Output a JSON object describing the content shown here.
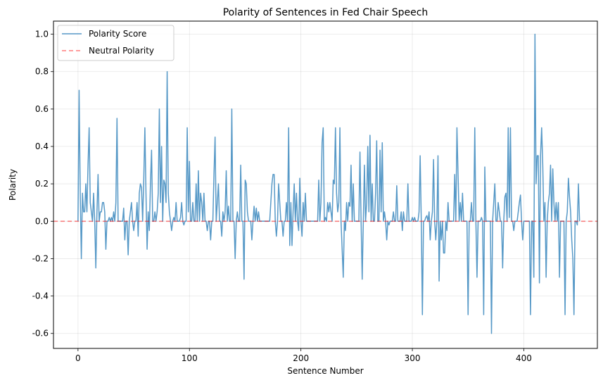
{
  "chart_data": {
    "type": "line",
    "title": "Polarity of Sentences in Fed Chair Speech",
    "xlabel": "Sentence Number",
    "ylabel": "Polarity",
    "xlim": [
      -22,
      466
    ],
    "ylim": [
      -0.68,
      1.07
    ],
    "xticks": [
      0,
      100,
      200,
      300,
      400
    ],
    "yticks": [
      -0.6,
      -0.4,
      -0.2,
      0.0,
      0.2,
      0.4,
      0.6,
      0.8,
      1.0
    ],
    "grid": true,
    "legend_position": "upper-left",
    "series": [
      {
        "name": "Polarity Score",
        "color": "#1f77b4",
        "x_start": 0,
        "values": [
          0.0,
          0.7,
          0.15,
          -0.2,
          0.15,
          0.05,
          0.05,
          0.2,
          0.05,
          0.3,
          0.5,
          0.1,
          0.05,
          0.0,
          0.15,
          0.0,
          -0.25,
          0.05,
          0.25,
          0.0,
          0.05,
          0.05,
          0.1,
          0.1,
          0.05,
          -0.15,
          0.0,
          0.0,
          0.02,
          0.0,
          0.02,
          0.0,
          0.05,
          0.0,
          0.1,
          0.55,
          0.0,
          0.0,
          0.0,
          0.0,
          0.0,
          0.07,
          -0.1,
          0.0,
          0.0,
          -0.18,
          0.0,
          0.05,
          0.1,
          0.0,
          -0.05,
          0.0,
          0.0,
          0.1,
          -0.08,
          0.15,
          0.2,
          0.18,
          0.0,
          0.22,
          0.5,
          0.15,
          -0.15,
          0.05,
          -0.05,
          0.2,
          0.38,
          0.0,
          0.0,
          0.05,
          0.0,
          0.05,
          0.15,
          0.6,
          0.1,
          0.4,
          0.0,
          0.22,
          0.2,
          0.1,
          0.8,
          0.15,
          0.05,
          0.0,
          -0.05,
          0.0,
          0.02,
          0.0,
          0.1,
          0.0,
          0.0,
          0.0,
          0.02,
          0.1,
          0.0,
          -0.02,
          0.0,
          0.0,
          0.5,
          0.05,
          0.32,
          0.0,
          0.0,
          0.1,
          0.0,
          0.0,
          0.2,
          0.0,
          0.27,
          0.0,
          0.15,
          0.1,
          0.0,
          0.15,
          0.0,
          0.0,
          -0.05,
          0.0,
          0.0,
          -0.1,
          0.0,
          0.0,
          0.25,
          0.45,
          0.0,
          0.1,
          0.2,
          0.0,
          0.0,
          -0.08,
          0.05,
          0.0,
          0.05,
          0.27,
          0.0,
          0.08,
          0.0,
          0.0,
          0.6,
          0.0,
          0.0,
          -0.2,
          0.0,
          0.05,
          0.0,
          0.0,
          0.3,
          0.0,
          0.0,
          -0.31,
          0.22,
          0.2,
          0.05,
          0.0,
          0.0,
          0.0,
          -0.1,
          0.0,
          0.08,
          0.0,
          0.07,
          0.0,
          0.05,
          0.0,
          0.0,
          0.0,
          0.0,
          0.0,
          0.0,
          0.0,
          0.0,
          0.0,
          0.0,
          0.1,
          0.2,
          0.25,
          0.25,
          0.0,
          -0.08,
          0.0,
          0.2,
          0.1,
          0.0,
          0.0,
          -0.08,
          0.0,
          0.0,
          0.1,
          0.0,
          0.5,
          -0.13,
          0.1,
          -0.13,
          0.05,
          0.2,
          0.0,
          0.15,
          0.0,
          -0.05,
          0.23,
          0.0,
          -0.08,
          0.1,
          0.0,
          0.15,
          0.0,
          0.0,
          0.0,
          0.0,
          0.0,
          0.0,
          0.0,
          0.0,
          0.0,
          0.0,
          0.0,
          0.22,
          0.0,
          0.1,
          0.42,
          0.5,
          0.0,
          0.02,
          0.0,
          0.1,
          0.05,
          0.1,
          0.05,
          0.0,
          0.22,
          0.2,
          0.5,
          0.15,
          0.05,
          0.1,
          0.5,
          0.0,
          -0.15,
          -0.3,
          0.0,
          -0.05,
          0.1,
          0.0,
          0.1,
          0.08,
          0.3,
          0.0,
          0.2,
          0.0,
          0.0,
          0.0,
          0.0,
          0.0,
          0.37,
          0.0,
          -0.31,
          0.0,
          0.3,
          0.0,
          0.1,
          0.4,
          0.05,
          0.46,
          0.0,
          0.2,
          0.0,
          0.0,
          0.15,
          0.43,
          0.0,
          0.0,
          0.38,
          0.05,
          0.42,
          0.0,
          0.05,
          0.0,
          -0.1,
          0.0,
          -0.02,
          0.0,
          0.0,
          0.0,
          0.05,
          0.0,
          0.0,
          0.19,
          0.0,
          0.0,
          0.0,
          0.05,
          -0.05,
          0.05,
          0.0,
          0.0,
          0.0,
          0.2,
          0.0,
          0.0,
          0.0,
          0.02,
          0.0,
          0.02,
          0.0,
          0.0,
          0.0,
          0.05,
          0.35,
          0.0,
          -0.5,
          0.0,
          0.0,
          0.02,
          0.03,
          0.0,
          0.05,
          -0.1,
          0.0,
          0.05,
          0.33,
          0.0,
          -0.1,
          0.0,
          0.35,
          -0.32,
          0.0,
          -0.1,
          0.0,
          -0.17,
          -0.17,
          0.0,
          -0.05,
          0.1,
          0.0,
          0.0,
          0.0,
          0.0,
          0.0,
          0.25,
          0.0,
          0.5,
          0.25,
          0.0,
          0.1,
          0.0,
          0.15,
          0.0,
          0.0,
          0.0,
          0.0,
          -0.5,
          0.0,
          0.0,
          0.1,
          0.0,
          0.0,
          0.5,
          0.0,
          -0.3,
          0.0,
          0.0,
          0.0,
          0.02,
          0.0,
          -0.5,
          0.29,
          0.0,
          0.0,
          0.0,
          0.0,
          0.0,
          -0.6,
          0.0,
          0.1,
          0.2,
          0.0,
          0.0,
          0.1,
          0.05,
          0.0,
          0.0,
          -0.25,
          0.0,
          0.13,
          0.15,
          0.0,
          0.5,
          0.02,
          0.5,
          0.0,
          0.0,
          -0.05,
          0.0,
          0.0,
          0.0,
          0.05,
          0.1,
          0.14,
          0.0,
          -0.1,
          0.0,
          0.0,
          0.0,
          0.0,
          0.0,
          0.0,
          -0.5,
          0.0,
          0.0,
          -0.3,
          1.0,
          0.2,
          0.35,
          0.35,
          -0.33,
          0.35,
          0.5,
          0.3,
          0.0,
          0.1,
          -0.3,
          0.0,
          0.1,
          0.15,
          0.3,
          0.0,
          0.28,
          0.1,
          0.0,
          0.1,
          0.0,
          0.1,
          -0.3,
          0.0,
          0.0,
          0.0,
          0.0,
          -0.5,
          0.0,
          0.05,
          0.23,
          0.13,
          0.05,
          -0.1,
          -0.2,
          -0.5,
          0.0,
          0.0,
          -0.02,
          0.2,
          0.0
        ]
      },
      {
        "name": "Neutral Polarity",
        "color": "#ff0000",
        "y_constant": 0.0,
        "style": "dashed"
      }
    ]
  }
}
